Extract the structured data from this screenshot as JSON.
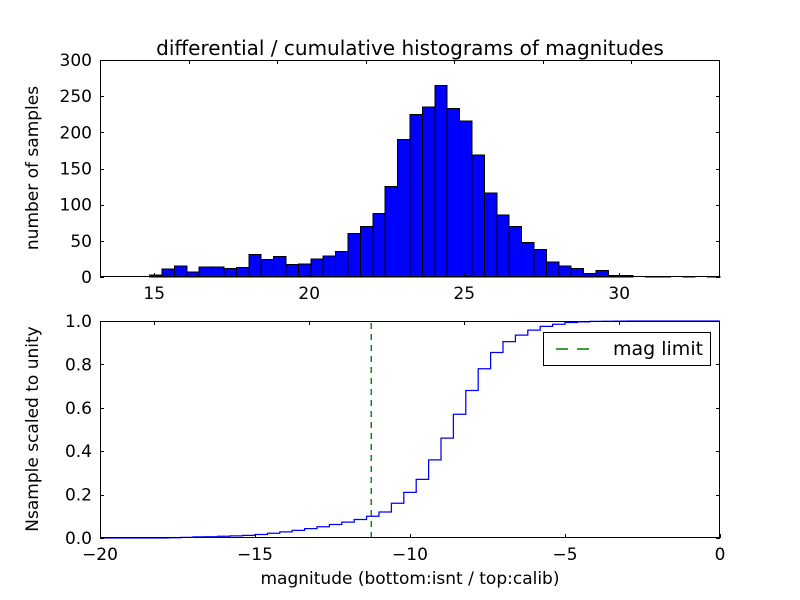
{
  "title": "differential / cumulative histograms of magnitudes",
  "colors": {
    "background": "#ffffff",
    "bar_fill": "#0000ff",
    "bar_edge": "#000000",
    "curve": "#0000ff",
    "vline": "#008000",
    "axis": "#000000"
  },
  "chart_data": [
    {
      "type": "bar",
      "subplot": "top",
      "ylabel": "number of samples",
      "xlim": [
        13.25,
        33.25
      ],
      "ylim": [
        0,
        300
      ],
      "xticks": [
        15,
        20,
        25,
        30
      ],
      "xtick_labels": [
        "15",
        "20",
        "25",
        "30"
      ],
      "yticks": [
        0,
        50,
        100,
        150,
        200,
        250,
        300
      ],
      "ytick_labels": [
        "0",
        "50",
        "100",
        "150",
        "200",
        "250",
        "300"
      ],
      "secondary_axis": {
        "xlim": [
          -20,
          -2.5
        ],
        "ticks": [
          -17.5,
          -15,
          -12.5,
          -10,
          -7.5,
          -5,
          -2.5
        ]
      },
      "bins": {
        "start": 14.85,
        "width": 0.4
      },
      "values": [
        3,
        11,
        15,
        7,
        14,
        14,
        12,
        13,
        31,
        24,
        28,
        17,
        18,
        25,
        29,
        35,
        60,
        70,
        88,
        125,
        190,
        225,
        235,
        265,
        233,
        216,
        169,
        116,
        86,
        70,
        48,
        38,
        21,
        15,
        12,
        5,
        9,
        2,
        2,
        0,
        1,
        1,
        0,
        1,
        0,
        1
      ],
      "grid": false
    },
    {
      "type": "line",
      "subplot": "bottom",
      "style": "step-cumulative",
      "ylabel": "Nsample scaled to unity",
      "xlabel": "magnitude (bottom:isnt / top:calib)",
      "xlim": [
        -20,
        0
      ],
      "ylim": [
        0.0,
        1.0
      ],
      "xticks": [
        -20,
        -15,
        -10,
        -5,
        0
      ],
      "xtick_labels": [
        "−20",
        "−15",
        "−10",
        "−5",
        "0"
      ],
      "yticks": [
        0.0,
        0.2,
        0.4,
        0.6,
        0.8,
        1.0
      ],
      "ytick_labels": [
        "0.0",
        "0.2",
        "0.4",
        "0.6",
        "0.8",
        "1.0"
      ],
      "secondary_axis": {
        "xlim": [
          13.25,
          33.25
        ],
        "ticks": [
          15,
          20,
          25,
          30
        ]
      },
      "bins": {
        "start": -17.8,
        "width": 0.4
      },
      "cumulative": [
        0.001,
        0.003,
        0.005,
        0.006,
        0.008,
        0.01,
        0.012,
        0.016,
        0.022,
        0.028,
        0.035,
        0.043,
        0.052,
        0.062,
        0.073,
        0.085,
        0.1,
        0.12,
        0.16,
        0.21,
        0.27,
        0.36,
        0.46,
        0.57,
        0.68,
        0.78,
        0.855,
        0.905,
        0.935,
        0.958,
        0.975,
        0.985,
        0.993,
        0.996,
        0.998,
        0.999,
        0.9995,
        1.0,
        1.0,
        1.0,
        1.0,
        1.0,
        1.0,
        1.0,
        1.0,
        1.0
      ],
      "vline": {
        "x": -11.25,
        "style": "dashed",
        "label": "mag limit"
      },
      "legend": {
        "label": "mag limit",
        "location": "upper right"
      },
      "grid": false
    }
  ]
}
